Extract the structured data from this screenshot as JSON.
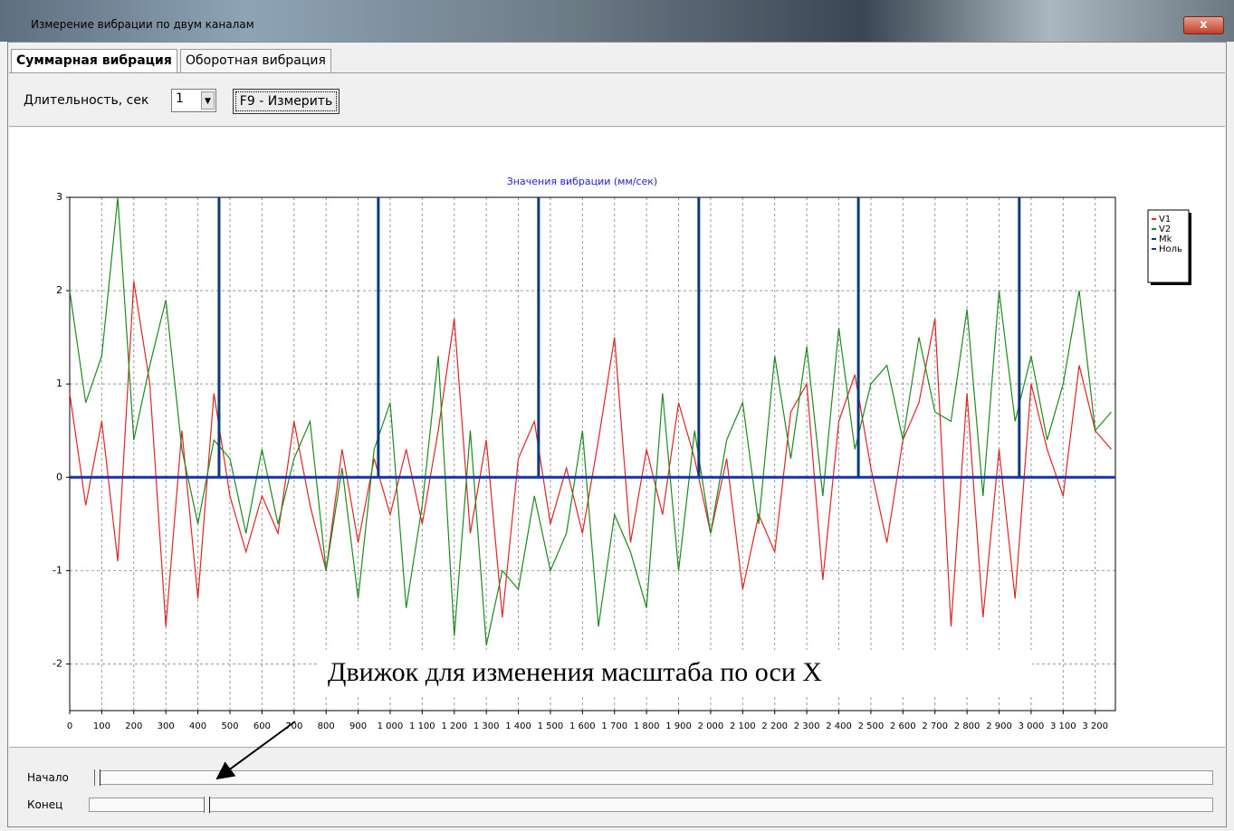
{
  "window": {
    "title": "Измерение вибрации по двум каналам"
  },
  "tabs": [
    "Суммарная вибрация",
    "Оборотная вибрация"
  ],
  "controls": {
    "duration_label": "Длительность, сек",
    "duration_value": "1",
    "measure_button": "F9 - Измерить"
  },
  "sliders": {
    "start_label": "Начало",
    "end_label": "Конец"
  },
  "annotation": "Движок для изменения масштаба по оси X",
  "chart_data": {
    "type": "line",
    "title": "Значения вибрации  (мм/сек)",
    "xlim": [
      0,
      3263
    ],
    "ylim": [
      -2.5,
      3
    ],
    "xticks": [
      0,
      100,
      200,
      300,
      400,
      500,
      600,
      700,
      800,
      900,
      {
        "value": 1000,
        "label": "1 000"
      },
      {
        "value": 1100,
        "label": "1 100"
      },
      {
        "value": 1200,
        "label": "1 200"
      },
      {
        "value": 1300,
        "label": "1 300"
      },
      {
        "value": 1400,
        "label": "1 400"
      },
      {
        "value": 1500,
        "label": "1 500"
      },
      {
        "value": 1600,
        "label": "1 600"
      },
      {
        "value": 1700,
        "label": "1 700"
      },
      {
        "value": 1800,
        "label": "1 800"
      },
      {
        "value": 1900,
        "label": "1 900"
      },
      {
        "value": 2000,
        "label": "2 000"
      },
      {
        "value": 2100,
        "label": "2 100"
      },
      {
        "value": 2200,
        "label": "2 200"
      },
      {
        "value": 2300,
        "label": "2 300"
      },
      {
        "value": 2400,
        "label": "2 400"
      },
      {
        "value": 2500,
        "label": "2 500"
      },
      {
        "value": 2600,
        "label": "2 600"
      },
      {
        "value": 2700,
        "label": "2 700"
      },
      {
        "value": 2800,
        "label": "2 800"
      },
      {
        "value": 2900,
        "label": "2 900"
      },
      {
        "value": 3000,
        "label": "3 000"
      },
      {
        "value": 3100,
        "label": "3 100"
      },
      {
        "value": 3200,
        "label": "3 200"
      }
    ],
    "yticks": [
      -2,
      -1,
      0,
      1,
      2,
      3
    ],
    "grid": true,
    "legend": "right",
    "x": [
      0,
      50,
      100,
      150,
      200,
      250,
      300,
      350,
      400,
      450,
      500,
      550,
      600,
      650,
      700,
      750,
      800,
      850,
      900,
      950,
      1000,
      1050,
      1100,
      1150,
      1200,
      1250,
      1300,
      1350,
      1400,
      1450,
      1500,
      1550,
      1600,
      1650,
      1700,
      1750,
      1800,
      1850,
      1900,
      1950,
      2000,
      2050,
      2100,
      2150,
      2200,
      2250,
      2300,
      2350,
      2400,
      2450,
      2500,
      2550,
      2600,
      2650,
      2700,
      2750,
      2800,
      2850,
      2900,
      2950,
      3000,
      3050,
      3100,
      3150,
      3200,
      3250
    ],
    "series": [
      {
        "name": "V1",
        "color": "#e02424",
        "values": [
          0.9,
          -0.3,
          0.6,
          -0.9,
          2.1,
          1.0,
          -1.6,
          0.5,
          -1.3,
          0.9,
          -0.2,
          -0.8,
          -0.2,
          -0.6,
          0.6,
          -0.3,
          -1.0,
          0.3,
          -0.7,
          0.2,
          -0.4,
          0.3,
          -0.5,
          0.5,
          1.7,
          -0.6,
          0.4,
          -1.5,
          0.2,
          0.6,
          -0.5,
          0.1,
          -0.6,
          0.4,
          1.5,
          -0.7,
          0.3,
          -0.4,
          0.8,
          0.2,
          -0.6,
          0.2,
          -1.2,
          -0.4,
          -0.8,
          0.7,
          1.0,
          -1.1,
          0.6,
          1.1,
          0.1,
          -0.7,
          0.4,
          0.8,
          1.7,
          -1.6,
          0.9,
          -1.5,
          0.3,
          -1.3,
          1.0,
          0.3,
          -0.2,
          1.2,
          0.5,
          0.3
        ]
      },
      {
        "name": "V2",
        "color": "#1d8a1d",
        "values": [
          2.0,
          0.8,
          1.3,
          3.0,
          0.4,
          1.2,
          1.9,
          0.3,
          -0.5,
          0.4,
          0.2,
          -0.6,
          0.3,
          -0.5,
          0.2,
          0.6,
          -1.0,
          0.1,
          -1.3,
          0.3,
          0.8,
          -1.4,
          -0.3,
          1.3,
          -1.7,
          0.5,
          -1.8,
          -1.0,
          -1.2,
          -0.2,
          -1.0,
          -0.6,
          0.5,
          -1.6,
          -0.4,
          -0.8,
          -1.4,
          0.9,
          -1.0,
          0.5,
          -0.6,
          0.4,
          0.8,
          -0.5,
          1.3,
          0.2,
          1.4,
          -0.2,
          1.6,
          0.3,
          1.0,
          1.2,
          0.4,
          1.5,
          0.7,
          0.6,
          1.8,
          -0.2,
          2.0,
          0.6,
          1.3,
          0.4,
          1.0,
          2.0,
          0.5,
          0.7
        ]
      },
      {
        "name": "Mk",
        "color": "#0b3b7c",
        "x": [
          466,
          963,
          1463,
          1963,
          2461,
          2963
        ],
        "values": [
          3,
          3,
          3,
          3,
          3,
          3
        ]
      },
      {
        "name": "Ноль",
        "color": "#1434a4",
        "x": [
          0,
          3263
        ],
        "values": [
          0,
          0
        ]
      }
    ]
  }
}
